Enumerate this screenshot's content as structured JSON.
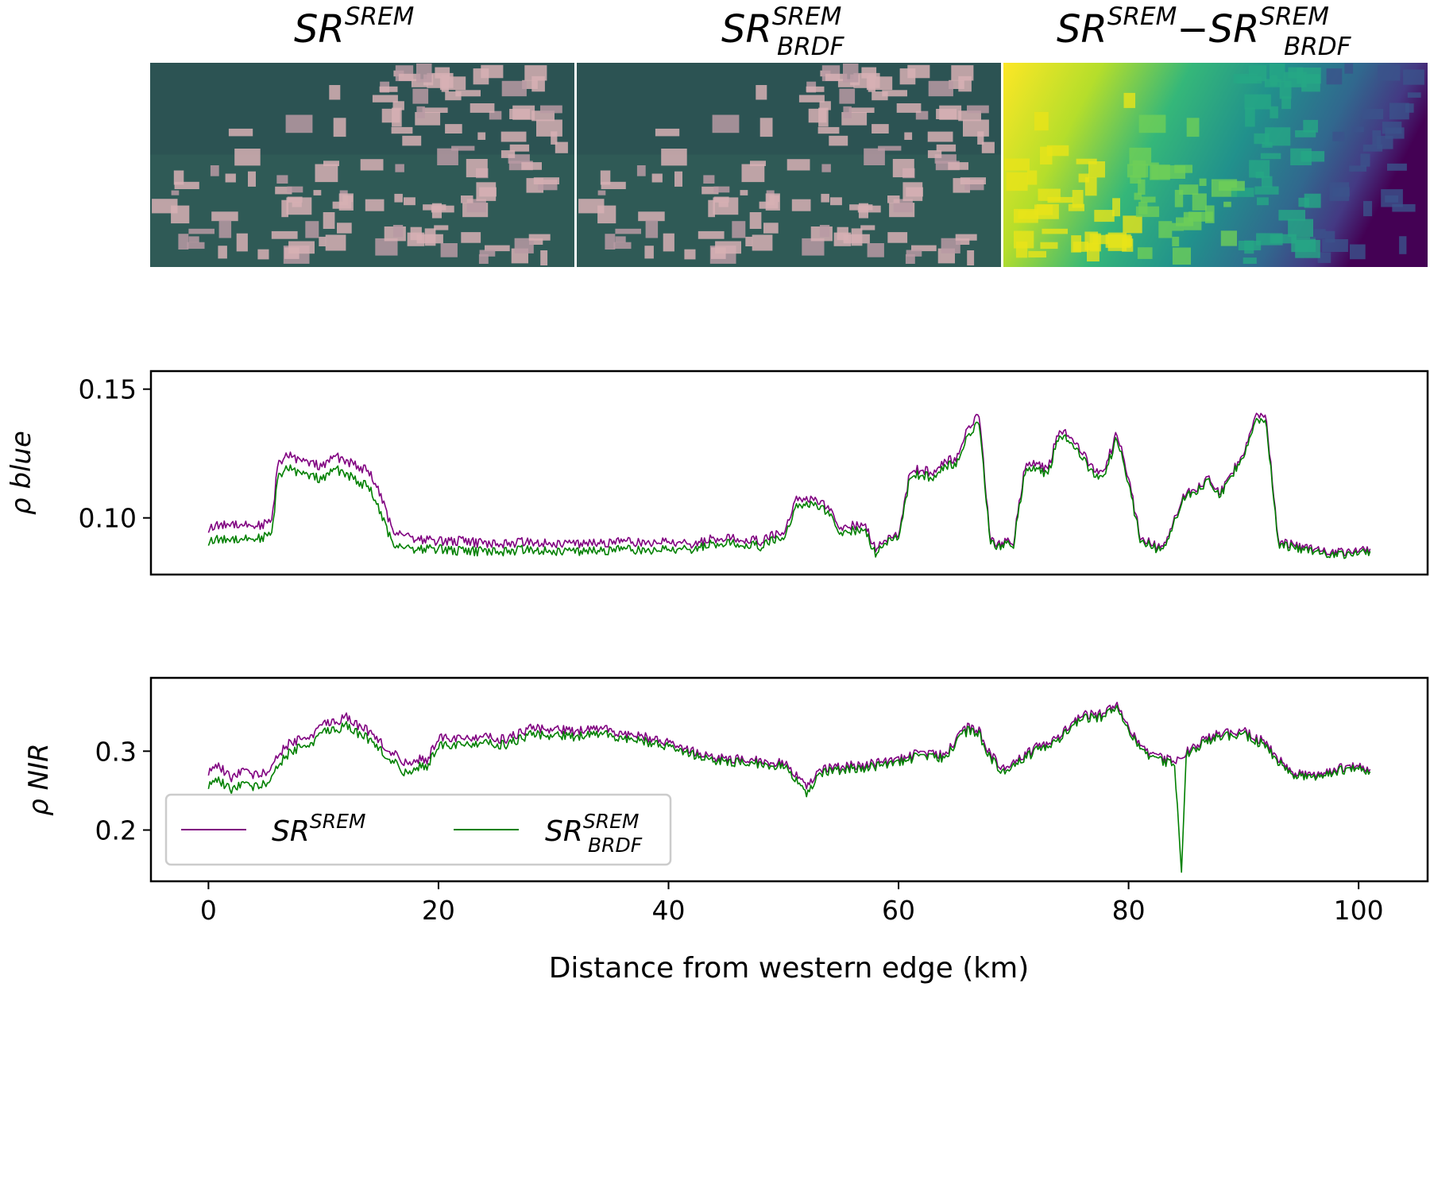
{
  "panels": [
    {
      "base": "SR",
      "sup": "SREM",
      "sub": ""
    },
    {
      "base": "SR",
      "sup": "SREM",
      "sub": "BRDF"
    },
    {
      "base": "SR",
      "sup": "SREM",
      "sub": "",
      "op": "−",
      "base2": "SR",
      "sup2": "SREM",
      "sub2": "BRDF"
    }
  ],
  "colors": {
    "sr_srem": "#800080",
    "sr_brdf": "#008000",
    "rgb_forest": "#2f5a56",
    "rgb_cleared": "#d7b0b4",
    "viridis_high": "#fde725",
    "viridis_mid": "#21918c",
    "viridis_low": "#440154"
  },
  "chart_data": [
    {
      "type": "line",
      "ylabel": "ρ blue",
      "xlim": [
        -5,
        106
      ],
      "ylim": [
        0.078,
        0.157
      ],
      "yticks": [
        0.1,
        0.15
      ],
      "ytick_labels": [
        "0.10",
        "0.15"
      ],
      "series": [
        {
          "name": "SR^SREM",
          "color": "#800080",
          "x": [
            0,
            2,
            4,
            5.5,
            6,
            7,
            8,
            9,
            10,
            11,
            12,
            13,
            14,
            15,
            16,
            17,
            18,
            20,
            22,
            24,
            26,
            28,
            30,
            32,
            34,
            36,
            38,
            40,
            42,
            44,
            46,
            48,
            49,
            50,
            51,
            52,
            53,
            54,
            55,
            56,
            57,
            58,
            59,
            60,
            61,
            62,
            63,
            64,
            65,
            66,
            67,
            68,
            69,
            70,
            71,
            72,
            73,
            74,
            75,
            76,
            77,
            78,
            79,
            80,
            81,
            82,
            83,
            84,
            85,
            86,
            87,
            88,
            89,
            90,
            91,
            92,
            93,
            94,
            96,
            98,
            100,
            101
          ],
          "y": [
            0.096,
            0.098,
            0.097,
            0.098,
            0.12,
            0.125,
            0.122,
            0.121,
            0.12,
            0.124,
            0.122,
            0.12,
            0.118,
            0.108,
            0.095,
            0.094,
            0.092,
            0.091,
            0.091,
            0.09,
            0.09,
            0.091,
            0.09,
            0.09,
            0.09,
            0.091,
            0.09,
            0.091,
            0.09,
            0.092,
            0.092,
            0.091,
            0.093,
            0.094,
            0.107,
            0.108,
            0.107,
            0.103,
            0.096,
            0.097,
            0.098,
            0.088,
            0.092,
            0.093,
            0.118,
            0.119,
            0.117,
            0.122,
            0.123,
            0.135,
            0.14,
            0.091,
            0.09,
            0.091,
            0.12,
            0.121,
            0.119,
            0.135,
            0.132,
            0.125,
            0.118,
            0.12,
            0.133,
            0.115,
            0.093,
            0.09,
            0.088,
            0.1,
            0.11,
            0.112,
            0.115,
            0.11,
            0.118,
            0.125,
            0.14,
            0.138,
            0.091,
            0.09,
            0.088,
            0.087,
            0.087,
            0.088
          ]
        },
        {
          "name": "SR_BRDF^SREM",
          "color": "#008000",
          "x": [
            0,
            2,
            4,
            5.5,
            6,
            7,
            8,
            9,
            10,
            11,
            12,
            13,
            14,
            15,
            16,
            17,
            18,
            20,
            22,
            24,
            26,
            28,
            30,
            32,
            34,
            36,
            38,
            40,
            42,
            44,
            46,
            48,
            49,
            50,
            51,
            52,
            53,
            54,
            55,
            56,
            57,
            58,
            59,
            60,
            61,
            62,
            63,
            64,
            65,
            66,
            67,
            68,
            69,
            70,
            71,
            72,
            73,
            74,
            75,
            76,
            77,
            78,
            79,
            80,
            81,
            82,
            83,
            84,
            85,
            86,
            87,
            88,
            89,
            90,
            91,
            92,
            93,
            94,
            96,
            98,
            100,
            101
          ],
          "y": [
            0.091,
            0.092,
            0.092,
            0.093,
            0.115,
            0.12,
            0.117,
            0.116,
            0.115,
            0.119,
            0.117,
            0.114,
            0.112,
            0.101,
            0.09,
            0.089,
            0.088,
            0.088,
            0.087,
            0.087,
            0.087,
            0.088,
            0.087,
            0.087,
            0.087,
            0.088,
            0.087,
            0.088,
            0.088,
            0.09,
            0.09,
            0.089,
            0.091,
            0.092,
            0.104,
            0.106,
            0.105,
            0.101,
            0.094,
            0.095,
            0.096,
            0.086,
            0.091,
            0.092,
            0.116,
            0.117,
            0.115,
            0.12,
            0.121,
            0.132,
            0.137,
            0.09,
            0.089,
            0.09,
            0.118,
            0.119,
            0.117,
            0.133,
            0.13,
            0.123,
            0.116,
            0.118,
            0.131,
            0.113,
            0.092,
            0.089,
            0.087,
            0.099,
            0.109,
            0.111,
            0.114,
            0.109,
            0.117,
            0.124,
            0.138,
            0.136,
            0.09,
            0.089,
            0.087,
            0.086,
            0.086,
            0.087
          ]
        }
      ]
    },
    {
      "type": "line",
      "ylabel": "ρ NIR",
      "xlabel": "Distance from western edge (km)",
      "xlim": [
        -5,
        106
      ],
      "ylim": [
        0.135,
        0.393
      ],
      "yticks": [
        0.2,
        0.3
      ],
      "ytick_labels": [
        "0.2",
        "0.3"
      ],
      "xticks": [
        0,
        20,
        40,
        60,
        80,
        100
      ],
      "xtick_labels": [
        "0",
        "20",
        "40",
        "60",
        "80",
        "100"
      ],
      "legend": "lower-left",
      "series": [
        {
          "name": "SR^SREM",
          "color": "#800080",
          "x": [
            0,
            1,
            2,
            3,
            4,
            5,
            6,
            7,
            8,
            9,
            10,
            11,
            12,
            13,
            14,
            15,
            16,
            17,
            18,
            19,
            20,
            22,
            24,
            26,
            28,
            30,
            32,
            34,
            36,
            38,
            40,
            42,
            44,
            46,
            48,
            50,
            51,
            52,
            53,
            54,
            56,
            58,
            60,
            62,
            64,
            65,
            66,
            67,
            68,
            69,
            70,
            72,
            74,
            75,
            76,
            78,
            79,
            80,
            81,
            82,
            83,
            84,
            85,
            86,
            87,
            88,
            90,
            92,
            93,
            94,
            96,
            98,
            100,
            101
          ],
          "y": [
            0.275,
            0.28,
            0.265,
            0.275,
            0.27,
            0.272,
            0.295,
            0.31,
            0.315,
            0.32,
            0.34,
            0.335,
            0.345,
            0.332,
            0.325,
            0.312,
            0.298,
            0.285,
            0.29,
            0.288,
            0.318,
            0.318,
            0.318,
            0.315,
            0.33,
            0.328,
            0.325,
            0.33,
            0.322,
            0.318,
            0.31,
            0.3,
            0.292,
            0.29,
            0.288,
            0.285,
            0.27,
            0.255,
            0.275,
            0.278,
            0.282,
            0.284,
            0.29,
            0.298,
            0.295,
            0.315,
            0.33,
            0.325,
            0.295,
            0.28,
            0.285,
            0.305,
            0.32,
            0.332,
            0.345,
            0.348,
            0.362,
            0.33,
            0.305,
            0.298,
            0.292,
            0.285,
            0.3,
            0.31,
            0.318,
            0.322,
            0.325,
            0.31,
            0.29,
            0.275,
            0.27,
            0.278,
            0.28,
            0.277
          ]
        },
        {
          "name": "SR_BRDF^SREM",
          "color": "#008000",
          "x": [
            0,
            1,
            2,
            3,
            4,
            5,
            6,
            7,
            8,
            9,
            10,
            11,
            12,
            13,
            14,
            15,
            16,
            17,
            18,
            19,
            20,
            22,
            24,
            26,
            28,
            30,
            32,
            34,
            36,
            38,
            40,
            42,
            44,
            46,
            48,
            50,
            51,
            52,
            53,
            54,
            56,
            58,
            60,
            62,
            64,
            65,
            66,
            67,
            68,
            69,
            70,
            72,
            74,
            75,
            76,
            78,
            79,
            80,
            81,
            82,
            83,
            84,
            84.6,
            85,
            86,
            87,
            88,
            90,
            92,
            93,
            94,
            96,
            98,
            100,
            101
          ],
          "y": [
            0.258,
            0.262,
            0.25,
            0.258,
            0.255,
            0.258,
            0.282,
            0.298,
            0.305,
            0.31,
            0.33,
            0.325,
            0.334,
            0.322,
            0.315,
            0.302,
            0.288,
            0.272,
            0.28,
            0.28,
            0.308,
            0.31,
            0.31,
            0.308,
            0.322,
            0.32,
            0.318,
            0.323,
            0.316,
            0.312,
            0.305,
            0.296,
            0.288,
            0.286,
            0.284,
            0.281,
            0.264,
            0.245,
            0.27,
            0.274,
            0.278,
            0.28,
            0.286,
            0.294,
            0.291,
            0.311,
            0.326,
            0.321,
            0.29,
            0.275,
            0.281,
            0.301,
            0.316,
            0.328,
            0.341,
            0.344,
            0.358,
            0.326,
            0.301,
            0.294,
            0.288,
            0.281,
            0.15,
            0.296,
            0.306,
            0.314,
            0.318,
            0.321,
            0.306,
            0.286,
            0.272,
            0.267,
            0.275,
            0.277,
            0.274
          ]
        }
      ]
    }
  ]
}
